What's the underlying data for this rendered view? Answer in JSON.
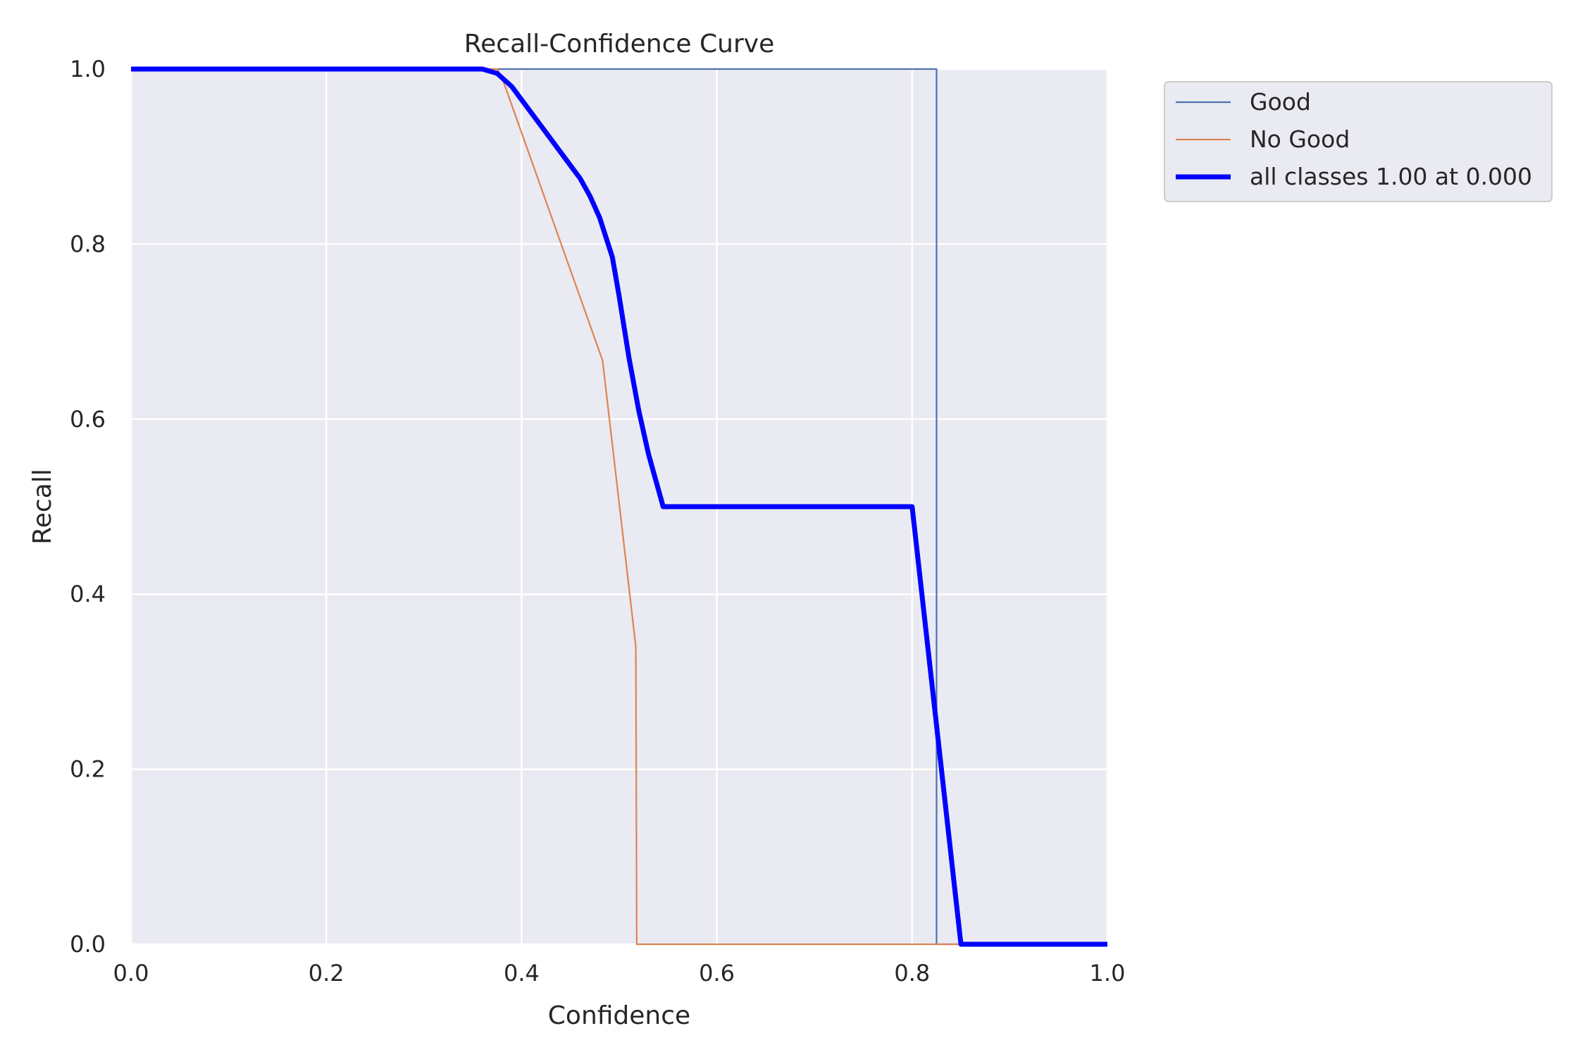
{
  "chart_data": {
    "type": "line",
    "title": "Recall-Confidence Curve",
    "xlabel": "Confidence",
    "ylabel": "Recall",
    "xlim": [
      0,
      1
    ],
    "ylim": [
      0,
      1
    ],
    "xticks": [
      "0.0",
      "0.2",
      "0.4",
      "0.6",
      "0.8",
      "1.0"
    ],
    "yticks": [
      "0.0",
      "0.2",
      "0.4",
      "0.6",
      "0.8",
      "1.0"
    ],
    "grid": true,
    "legend_position": "outside-top-right",
    "background_color": "#eaeaf2",
    "series": [
      {
        "name": "Good",
        "color": "#4c72b0",
        "points": [
          [
            0.0,
            1.0
          ],
          [
            0.825,
            1.0
          ],
          [
            0.825,
            0.0
          ],
          [
            1.0,
            0.0
          ]
        ]
      },
      {
        "name": "No Good",
        "color": "#dd8452",
        "points": [
          [
            0.0,
            1.0
          ],
          [
            0.375,
            1.0
          ],
          [
            0.38,
            0.99
          ],
          [
            0.483,
            0.667
          ],
          [
            0.517,
            0.34
          ],
          [
            0.518,
            0.0
          ],
          [
            1.0,
            0.0
          ]
        ]
      },
      {
        "name": "all classes 1.00 at 0.000",
        "color": "#0000ff",
        "thick": true,
        "points": [
          [
            0.0,
            1.0
          ],
          [
            0.36,
            1.0
          ],
          [
            0.375,
            0.995
          ],
          [
            0.39,
            0.98
          ],
          [
            0.4,
            0.965
          ],
          [
            0.42,
            0.935
          ],
          [
            0.44,
            0.905
          ],
          [
            0.46,
            0.875
          ],
          [
            0.47,
            0.855
          ],
          [
            0.48,
            0.83
          ],
          [
            0.493,
            0.785
          ],
          [
            0.5,
            0.74
          ],
          [
            0.51,
            0.67
          ],
          [
            0.52,
            0.61
          ],
          [
            0.53,
            0.56
          ],
          [
            0.545,
            0.5
          ],
          [
            0.8,
            0.5
          ],
          [
            0.825,
            0.25
          ],
          [
            0.85,
            0.0
          ],
          [
            1.0,
            0.0
          ]
        ]
      }
    ]
  }
}
